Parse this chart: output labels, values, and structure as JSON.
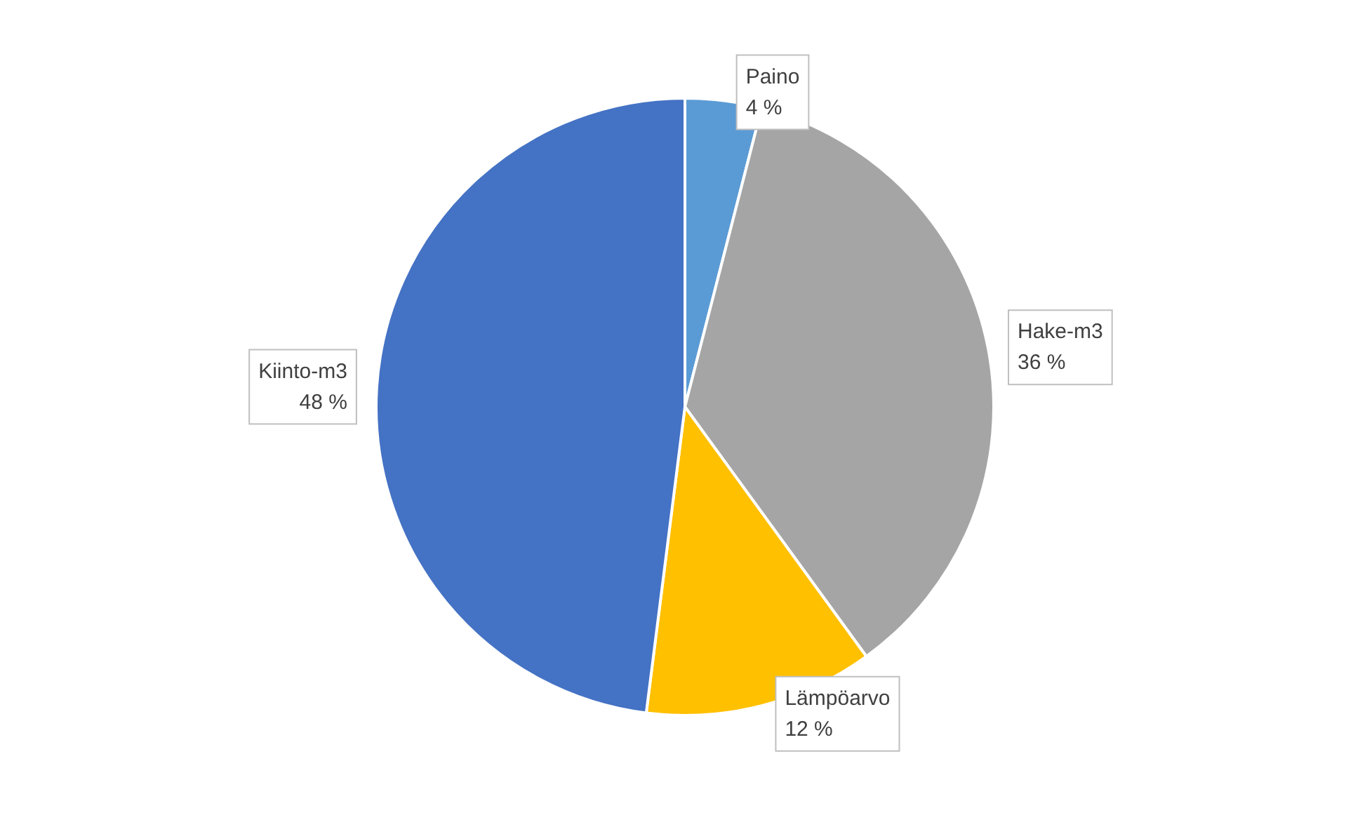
{
  "chart_data": {
    "type": "pie",
    "categories": [
      "Paino",
      "Hake-m3",
      "Lämpöarvo",
      "Kiinto-m3"
    ],
    "values": [
      4,
      36,
      12,
      48
    ],
    "colors": [
      "#5b9bd5",
      "#a5a5a5",
      "#ffc000",
      "#4472c4"
    ],
    "value_labels": [
      "4 %",
      "36 %",
      "12 %",
      "48 %"
    ],
    "legend": false
  }
}
